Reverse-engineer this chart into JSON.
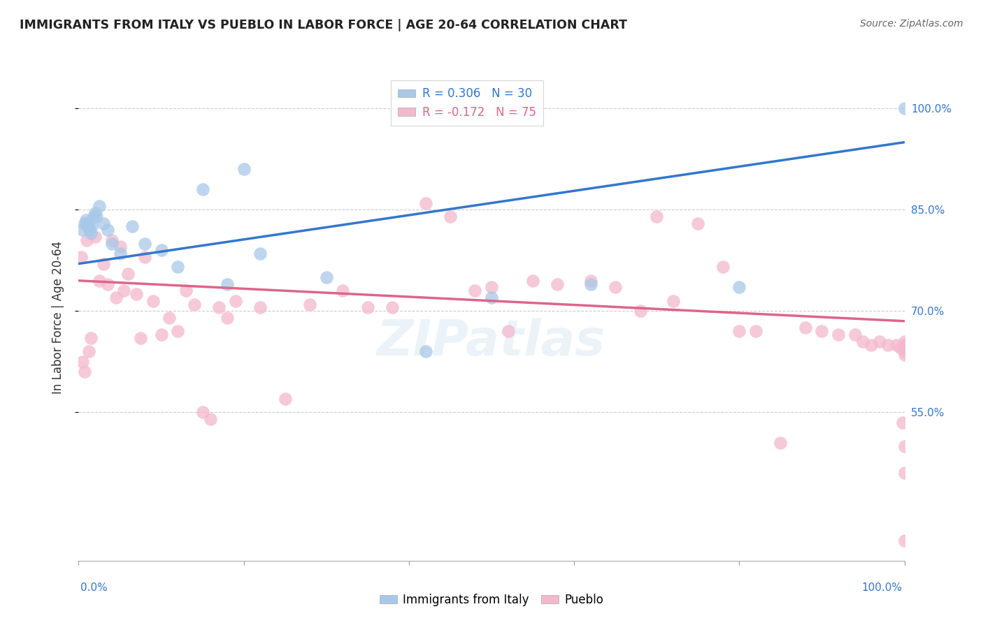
{
  "title": "IMMIGRANTS FROM ITALY VS PUEBLO IN LABOR FORCE | AGE 20-64 CORRELATION CHART",
  "source": "Source: ZipAtlas.com",
  "ylabel": "In Labor Force | Age 20-64",
  "legend_blue_r": "R = 0.306",
  "legend_blue_n": "N = 30",
  "legend_pink_r": "R = -0.172",
  "legend_pink_n": "N = 75",
  "blue_color": "#a8c8e8",
  "pink_color": "#f4b8cc",
  "blue_line_color": "#3377cc",
  "pink_line_color": "#dd6688",
  "tick_color": "#3377cc",
  "blue_scatter_x": [
    0.5,
    0.7,
    0.9,
    1.0,
    1.2,
    1.3,
    1.5,
    1.6,
    1.8,
    2.0,
    2.2,
    2.5,
    3.0,
    3.5,
    4.0,
    5.0,
    6.5,
    8.0,
    10.0,
    12.0,
    15.0,
    18.0,
    20.0,
    22.0,
    30.0,
    42.0,
    50.0,
    62.0,
    80.0,
    100.0
  ],
  "blue_scatter_y": [
    82.0,
    83.0,
    83.5,
    83.0,
    82.5,
    82.0,
    81.5,
    82.5,
    84.0,
    84.5,
    84.0,
    85.5,
    83.0,
    82.0,
    80.0,
    78.5,
    82.5,
    80.0,
    79.0,
    76.5,
    88.0,
    74.0,
    91.0,
    78.5,
    75.0,
    64.0,
    72.0,
    74.0,
    73.5,
    100.0
  ],
  "pink_scatter_x": [
    0.3,
    0.5,
    0.7,
    1.0,
    1.2,
    1.5,
    2.0,
    2.5,
    3.0,
    3.5,
    4.0,
    4.5,
    5.0,
    5.5,
    6.0,
    7.0,
    7.5,
    8.0,
    9.0,
    10.0,
    11.0,
    12.0,
    13.0,
    14.0,
    15.0,
    16.0,
    17.0,
    18.0,
    19.0,
    22.0,
    25.0,
    28.0,
    32.0,
    35.0,
    38.0,
    42.0,
    45.0,
    48.0,
    50.0,
    52.0,
    55.0,
    58.0,
    62.0,
    65.0,
    68.0,
    70.0,
    72.0,
    75.0,
    78.0,
    80.0,
    82.0,
    85.0,
    88.0,
    90.0,
    92.0,
    94.0,
    95.0,
    96.0,
    97.0,
    98.0,
    99.0,
    99.5,
    99.8,
    100.0,
    100.0,
    100.0,
    100.0,
    100.0,
    100.0,
    100.0,
    100.0,
    100.0,
    100.0,
    100.0,
    100.0
  ],
  "pink_scatter_y": [
    78.0,
    62.5,
    61.0,
    80.5,
    64.0,
    66.0,
    81.0,
    74.5,
    77.0,
    74.0,
    80.5,
    72.0,
    79.5,
    73.0,
    75.5,
    72.5,
    66.0,
    78.0,
    71.5,
    66.5,
    69.0,
    67.0,
    73.0,
    71.0,
    55.0,
    54.0,
    70.5,
    69.0,
    71.5,
    70.5,
    57.0,
    71.0,
    73.0,
    70.5,
    70.5,
    86.0,
    84.0,
    73.0,
    73.5,
    67.0,
    74.5,
    74.0,
    74.5,
    73.5,
    70.0,
    84.0,
    71.5,
    83.0,
    76.5,
    67.0,
    67.0,
    50.5,
    67.5,
    67.0,
    66.5,
    66.5,
    65.5,
    65.0,
    65.5,
    65.0,
    65.0,
    64.5,
    53.5,
    65.0,
    65.5,
    64.5,
    63.5,
    64.5,
    65.0,
    46.0,
    50.0,
    36.0,
    64.5,
    64.0,
    65.0
  ],
  "xlim": [
    0,
    100
  ],
  "ylim": [
    33,
    105
  ],
  "blue_line_x": [
    0,
    100
  ],
  "blue_line_y": [
    77.0,
    95.0
  ],
  "pink_line_x": [
    0,
    100
  ],
  "pink_line_y": [
    74.5,
    68.5
  ],
  "ytick_positions": [
    55,
    70,
    85,
    100
  ],
  "grid_color": "#cccccc",
  "bg_color": "#ffffff"
}
